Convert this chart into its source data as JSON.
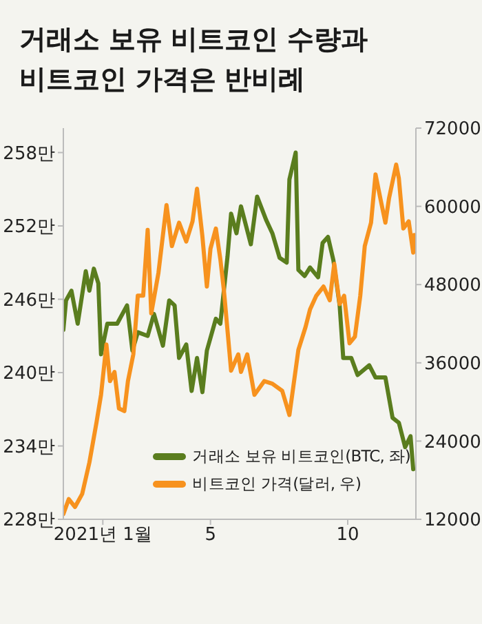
{
  "chart_data": {
    "type": "line",
    "title": "거래소 보유 비트코인 수량과\n비트코인 가격은 반비례",
    "xlim": [
      "2020-11-18",
      "2021-12-16"
    ],
    "xticks": [
      {
        "value": "2021-01-01",
        "label": "2021년 1월"
      },
      {
        "value": "2021-05-01",
        "label": "5"
      },
      {
        "value": "2021-10-01",
        "label": "10"
      }
    ],
    "ylim": [
      228,
      260
    ],
    "yticks": [
      {
        "value": 228,
        "label": "228만"
      },
      {
        "value": 234,
        "label": "234만"
      },
      {
        "value": 240,
        "label": "240만"
      },
      {
        "value": 246,
        "label": "246만"
      },
      {
        "value": 252,
        "label": "252만"
      },
      {
        "value": 258,
        "label": "258만"
      }
    ],
    "y2lim": [
      12000,
      72000
    ],
    "y2ticks": [
      12000,
      24000,
      36000,
      48000,
      60000,
      72000
    ],
    "grid": false,
    "legend": "bottom right",
    "marker": "none",
    "line_style": "solid",
    "series": [
      {
        "name": "거래소 보유 비트코인(BTC, 좌)",
        "color": "#5a7d1e",
        "x": [
          "2020-11-18",
          "2020-11-21",
          "2020-11-27",
          "2020-12-04",
          "2020-12-13",
          "2020-12-17",
          "2020-12-22",
          "2020-12-27",
          "2020-12-30",
          "2021-01-06",
          "2021-01-17",
          "2021-01-28",
          "2021-02-03",
          "2021-02-09",
          "2021-02-20",
          "2021-02-27",
          "2021-03-09",
          "2021-03-16",
          "2021-03-22",
          "2021-03-27",
          "2021-04-04",
          "2021-04-10",
          "2021-04-16",
          "2021-04-22",
          "2021-04-27",
          "2021-05-07",
          "2021-05-12",
          "2021-05-20",
          "2021-05-24",
          "2021-05-30",
          "2021-06-04",
          "2021-06-15",
          "2021-06-22",
          "2021-07-02",
          "2021-07-09",
          "2021-07-17",
          "2021-07-25",
          "2021-07-28",
          "2021-08-04",
          "2021-08-07",
          "2021-08-14",
          "2021-08-20",
          "2021-08-29",
          "2021-09-03",
          "2021-09-09",
          "2021-09-15",
          "2021-09-22",
          "2021-09-26",
          "2021-10-05",
          "2021-10-12",
          "2021-10-25",
          "2021-11-01",
          "2021-11-12",
          "2021-11-20",
          "2021-11-27",
          "2021-12-04",
          "2021-12-10",
          "2021-12-13"
        ],
        "values": [
          243.5,
          245.9,
          246.7,
          244,
          248.3,
          246.7,
          248.5,
          247.3,
          241.5,
          244,
          244,
          245.5,
          241.8,
          243.3,
          243,
          244.8,
          242.2,
          245.9,
          245.5,
          241.2,
          242.3,
          238.5,
          241.2,
          238.4,
          241.8,
          244.4,
          244,
          249.5,
          253,
          251.4,
          253.6,
          250.5,
          254.4,
          252.5,
          251.4,
          249.4,
          249,
          255.8,
          258,
          248.4,
          247.9,
          248.6,
          247.8,
          250.6,
          251.1,
          249.2,
          245.5,
          241.2,
          241.2,
          239.8,
          240.6,
          239.6,
          239.6,
          236.3,
          235.9,
          233.9,
          234.8,
          232.1
        ]
      },
      {
        "name": "비트코인 가격(달러, 우)",
        "color": "#f7921e",
        "axis": "y2",
        "x": [
          "2020-11-18",
          "2020-11-24",
          "2020-12-01",
          "2020-12-09",
          "2020-12-17",
          "2020-12-25",
          "2020-12-30",
          "2021-01-05",
          "2021-01-09",
          "2021-01-14",
          "2021-01-19",
          "2021-01-25",
          "2021-01-29",
          "2021-02-04",
          "2021-02-09",
          "2021-02-15",
          "2021-02-20",
          "2021-02-24",
          "2021-03-04",
          "2021-03-13",
          "2021-03-19",
          "2021-03-27",
          "2021-04-04",
          "2021-04-11",
          "2021-04-16",
          "2021-04-22",
          "2021-04-27",
          "2021-05-01",
          "2021-05-07",
          "2021-05-12",
          "2021-05-16",
          "2021-05-24",
          "2021-06-01",
          "2021-06-04",
          "2021-06-11",
          "2021-06-19",
          "2021-06-30",
          "2021-07-09",
          "2021-07-20",
          "2021-07-28",
          "2021-08-07",
          "2021-08-15",
          "2021-08-20",
          "2021-08-27",
          "2021-09-04",
          "2021-09-11",
          "2021-09-16",
          "2021-09-22",
          "2021-09-27",
          "2021-10-03",
          "2021-10-09",
          "2021-10-15",
          "2021-10-20",
          "2021-10-27",
          "2021-11-01",
          "2021-11-07",
          "2021-11-12",
          "2021-11-16",
          "2021-11-24",
          "2021-11-27",
          "2021-12-02",
          "2021-12-08",
          "2021-12-13",
          "2021-12-14"
        ],
        "values": [
          12800,
          15100,
          13900,
          15900,
          20700,
          26900,
          31100,
          38800,
          33200,
          34600,
          29000,
          28600,
          33200,
          37300,
          46300,
          46300,
          56400,
          43600,
          49800,
          60200,
          53900,
          57500,
          54600,
          57700,
          62700,
          55400,
          47700,
          53500,
          56600,
          51900,
          47100,
          34800,
          37300,
          34600,
          37300,
          31100,
          33200,
          32800,
          31700,
          28000,
          38000,
          41500,
          44200,
          46300,
          47700,
          45600,
          51200,
          45000,
          46300,
          39000,
          40000,
          46300,
          53900,
          57500,
          64900,
          60800,
          57500,
          61200,
          66400,
          64300,
          56600,
          57700,
          52900,
          55600
        ]
      }
    ]
  }
}
